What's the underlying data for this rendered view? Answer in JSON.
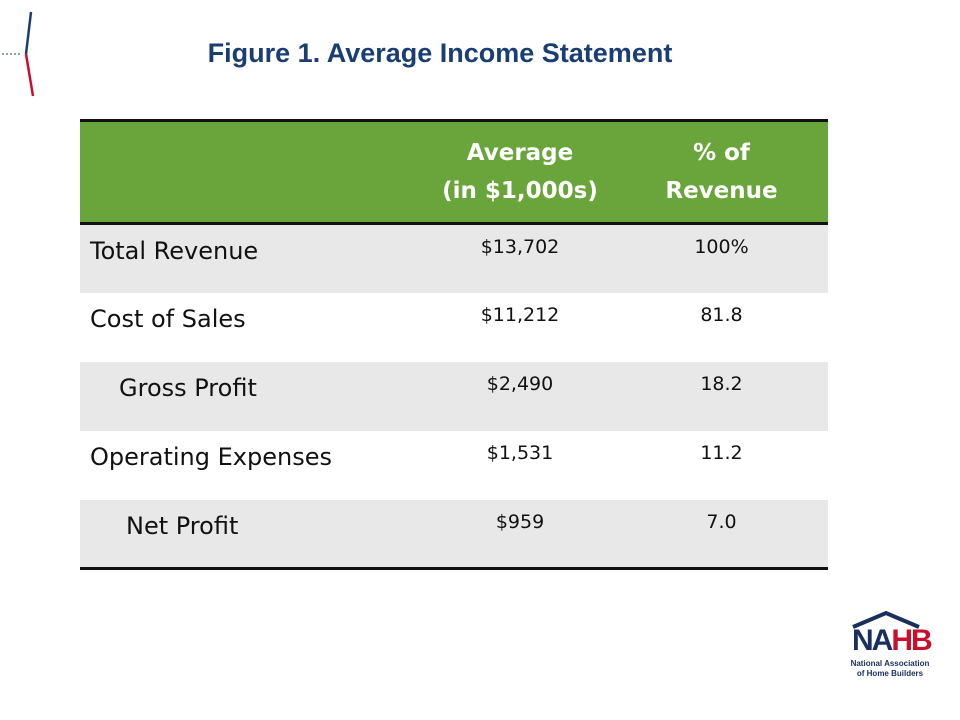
{
  "title": "Figure 1. Average Income Statement",
  "table": {
    "headers": {
      "label": "",
      "average_line1": "Average",
      "average_line2": "(in $1,000s)",
      "percent_line1": "% of",
      "percent_line2": "Revenue"
    },
    "rows": [
      {
        "label": "Total Revenue",
        "average": "$13,702",
        "percent": "100%"
      },
      {
        "label": "Cost of Sales",
        "average": "$11,212",
        "percent": "81.8"
      },
      {
        "label": "Gross Profit",
        "average": "$2,490",
        "percent": "18.2"
      },
      {
        "label": "Operating Expenses",
        "average": "$1,531",
        "percent": "11.2"
      },
      {
        "label": "Net Profit",
        "average": "$959",
        "percent": "7.0"
      }
    ]
  },
  "logo": {
    "name_part1": "NA",
    "name_part2": "HB",
    "tagline_line1": "National Association",
    "tagline_line2": "of Home Builders",
    "logo_icon": "nahb-house-roof-icon"
  },
  "colors": {
    "title": "#1a3e73",
    "header_background": "#6aa53b",
    "row_shading": "#e8e8e8",
    "logo_navy": "#1a2f5e",
    "logo_red": "#c8102e"
  }
}
